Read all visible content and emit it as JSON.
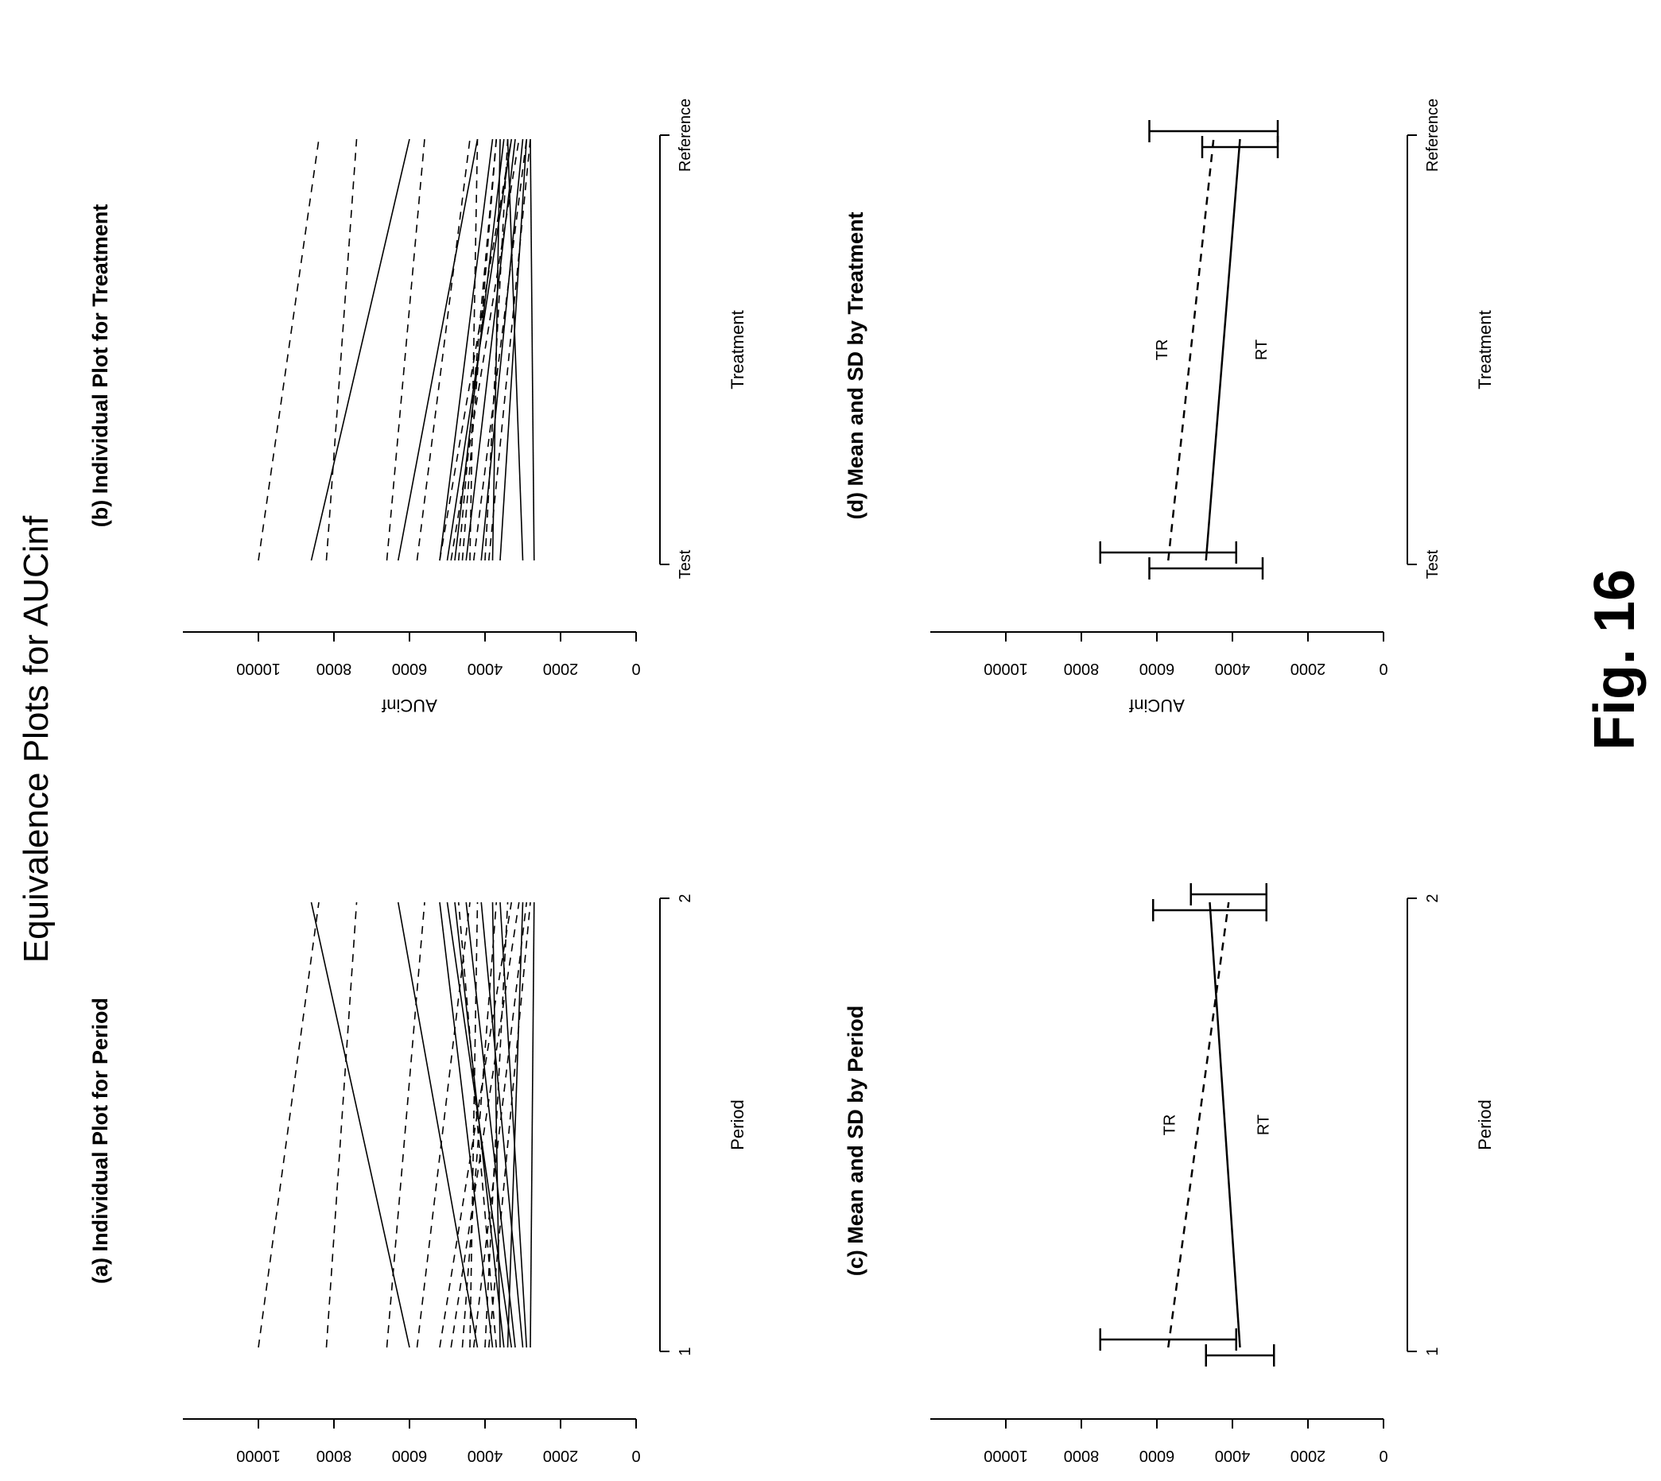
{
  "page": {
    "title": "Equivalence Plots for AUCinf",
    "figure_label": "Fig. 16"
  },
  "colors": {
    "ink": "#000000",
    "light_ink": "#555555",
    "background": "#ffffff"
  },
  "chart_data": [
    {
      "type": "line",
      "title": "(a) Individual Plot for Period",
      "xlabel": "Period",
      "ylabel": "AUCinf",
      "categories": [
        "1",
        "2"
      ],
      "yticks": [
        "0",
        "2000",
        "4000",
        "6000",
        "8000",
        "10000"
      ],
      "ylim": [
        0,
        12000
      ],
      "grid": false,
      "series": [
        {
          "style": "dashed",
          "values": [
            10000,
            8400
          ]
        },
        {
          "style": "solid",
          "values": [
            6000,
            8600
          ]
        },
        {
          "style": "dashed",
          "values": [
            8200,
            7400
          ]
        },
        {
          "style": "dashed",
          "values": [
            6600,
            5600
          ]
        },
        {
          "style": "solid",
          "values": [
            4200,
            6300
          ]
        },
        {
          "style": "dashed",
          "values": [
            5800,
            4400
          ]
        },
        {
          "style": "solid",
          "values": [
            3800,
            5200
          ]
        },
        {
          "style": "dashed",
          "values": [
            4600,
            3700
          ]
        },
        {
          "style": "solid",
          "values": [
            3500,
            4800
          ]
        },
        {
          "style": "dashed",
          "values": [
            5200,
            3300
          ]
        },
        {
          "style": "solid",
          "values": [
            3300,
            5000
          ]
        },
        {
          "style": "dashed",
          "values": [
            4900,
            3100
          ]
        },
        {
          "style": "solid",
          "values": [
            3200,
            4500
          ]
        },
        {
          "style": "dashed",
          "values": [
            4300,
            2900
          ]
        },
        {
          "style": "solid",
          "values": [
            3600,
            3800
          ]
        },
        {
          "style": "dashed",
          "values": [
            4000,
            3400
          ]
        },
        {
          "style": "solid",
          "values": [
            3000,
            4100
          ]
        },
        {
          "style": "dashed",
          "values": [
            3900,
            2800
          ]
        },
        {
          "style": "solid",
          "values": [
            2900,
            3600
          ]
        },
        {
          "style": "dashed",
          "values": [
            4400,
            4200
          ]
        },
        {
          "style": "solid",
          "values": [
            3400,
            3000
          ]
        },
        {
          "style": "dashed",
          "values": [
            3700,
            4700
          ]
        },
        {
          "style": "solid",
          "values": [
            2800,
            2700
          ]
        }
      ]
    },
    {
      "type": "line",
      "title": "(b) Individual Plot for Treatment",
      "xlabel": "Treatment",
      "ylabel": "AUCinf",
      "categories": [
        "Test",
        "Reference"
      ],
      "yticks": [
        "0",
        "2000",
        "4000",
        "6000",
        "8000",
        "10000"
      ],
      "ylim": [
        0,
        12000
      ],
      "grid": false,
      "series": [
        {
          "style": "dashed",
          "values": [
            10000,
            8400
          ]
        },
        {
          "style": "solid",
          "values": [
            8600,
            6000
          ]
        },
        {
          "style": "dashed",
          "values": [
            8200,
            7400
          ]
        },
        {
          "style": "dashed",
          "values": [
            6600,
            5600
          ]
        },
        {
          "style": "solid",
          "values": [
            6300,
            4200
          ]
        },
        {
          "style": "dashed",
          "values": [
            5800,
            4400
          ]
        },
        {
          "style": "solid",
          "values": [
            5200,
            3800
          ]
        },
        {
          "style": "dashed",
          "values": [
            4600,
            3700
          ]
        },
        {
          "style": "solid",
          "values": [
            4800,
            3500
          ]
        },
        {
          "style": "dashed",
          "values": [
            5200,
            3300
          ]
        },
        {
          "style": "solid",
          "values": [
            5000,
            3300
          ]
        },
        {
          "style": "dashed",
          "values": [
            4900,
            3100
          ]
        },
        {
          "style": "solid",
          "values": [
            4500,
            3200
          ]
        },
        {
          "style": "dashed",
          "values": [
            4300,
            2900
          ]
        },
        {
          "style": "solid",
          "values": [
            3800,
            3600
          ]
        },
        {
          "style": "dashed",
          "values": [
            4000,
            3400
          ]
        },
        {
          "style": "solid",
          "values": [
            4100,
            3000
          ]
        },
        {
          "style": "dashed",
          "values": [
            3900,
            2800
          ]
        },
        {
          "style": "solid",
          "values": [
            3600,
            2900
          ]
        },
        {
          "style": "dashed",
          "values": [
            4400,
            4200
          ]
        },
        {
          "style": "solid",
          "values": [
            3000,
            3400
          ]
        },
        {
          "style": "dashed",
          "values": [
            4700,
            3700
          ]
        },
        {
          "style": "solid",
          "values": [
            2700,
            2800
          ]
        }
      ]
    },
    {
      "type": "line",
      "title": "(c) Mean and SD by Period",
      "xlabel": "Period",
      "ylabel": "AUCinf",
      "categories": [
        "1",
        "2"
      ],
      "yticks": [
        "0",
        "2000",
        "4000",
        "6000",
        "8000",
        "10000"
      ],
      "ylim": [
        0,
        12000
      ],
      "grid": false,
      "series": [
        {
          "name": "TR",
          "style": "dashed",
          "values": [
            5700,
            4100
          ],
          "sd": [
            1800,
            1000
          ]
        },
        {
          "name": "RT",
          "style": "solid",
          "values": [
            3800,
            4600
          ],
          "sd": [
            900,
            1500
          ]
        }
      ]
    },
    {
      "type": "line",
      "title": "(d) Mean and SD by Treatment",
      "xlabel": "Treatment",
      "ylabel": "AUCinf",
      "categories": [
        "Test",
        "Reference"
      ],
      "yticks": [
        "0",
        "2000",
        "4000",
        "6000",
        "8000",
        "10000"
      ],
      "ylim": [
        0,
        12000
      ],
      "grid": false,
      "series": [
        {
          "name": "TR",
          "style": "dashed",
          "values": [
            5700,
            4500
          ],
          "sd": [
            1800,
            1700
          ]
        },
        {
          "name": "RT",
          "style": "solid",
          "values": [
            4700,
            3800
          ],
          "sd": [
            1500,
            1000
          ]
        }
      ]
    }
  ]
}
